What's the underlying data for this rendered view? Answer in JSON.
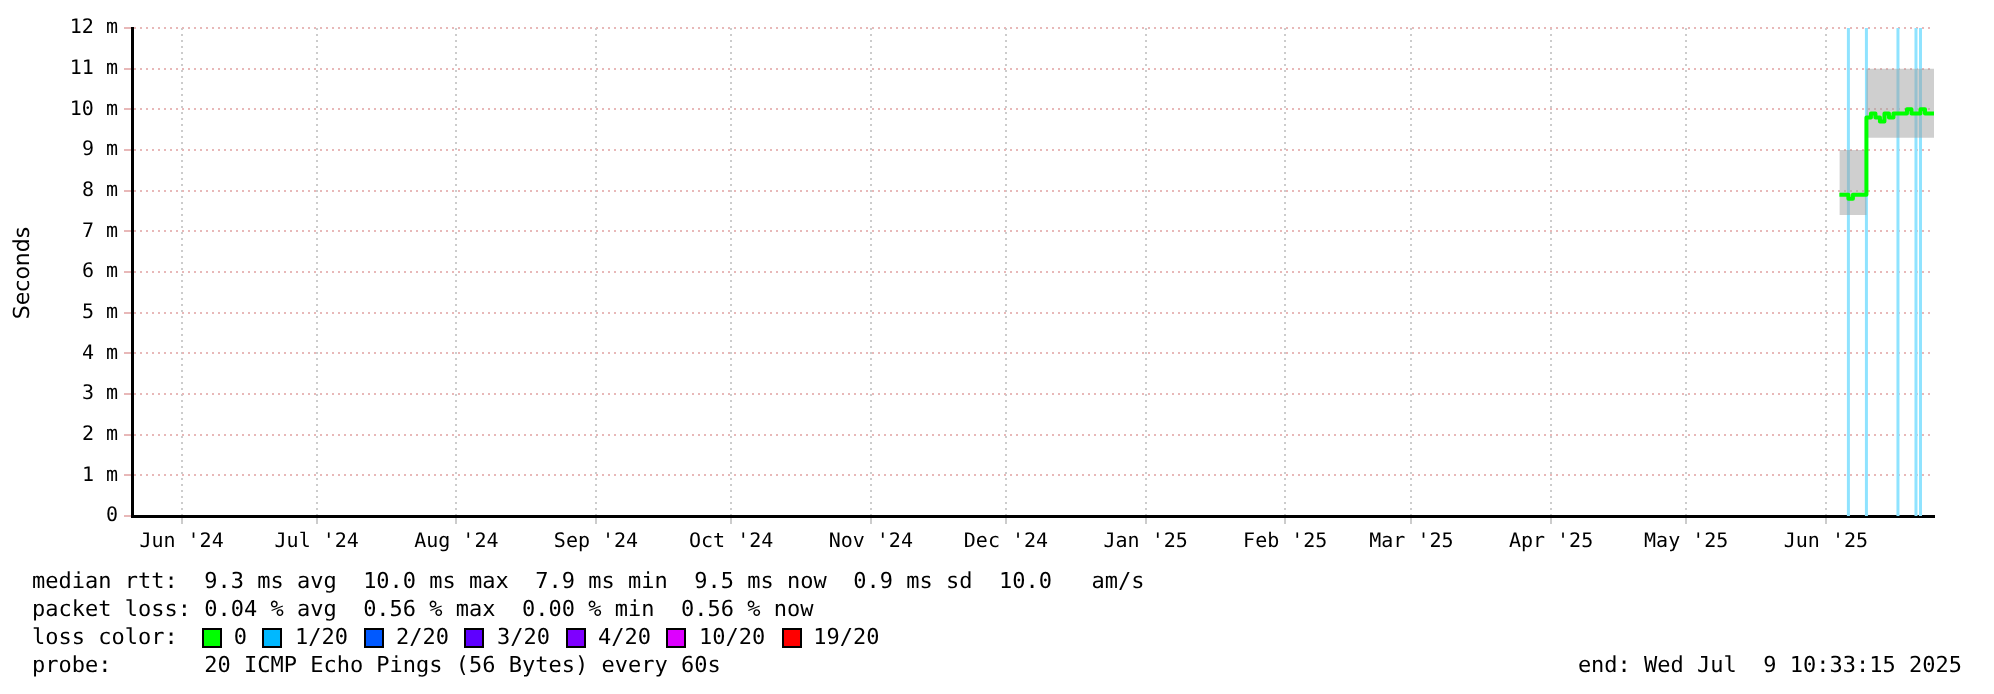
{
  "chart_data": {
    "type": "step",
    "ylabel": "Seconds",
    "legend_title": "loss color:",
    "legend": "bottom",
    "grid": true,
    "x": [
      "2025-06-18",
      "2025-06-19",
      "2025-06-20",
      "2025-06-21",
      "2025-06-22",
      "2025-06-23",
      "2025-06-24",
      "2025-06-25",
      "2025-06-26",
      "2025-06-27",
      "2025-06-28",
      "2025-06-29",
      "2025-06-30",
      "2025-07-01",
      "2025-07-02",
      "2025-07-03",
      "2025-07-04",
      "2025-07-05",
      "2025-07-06",
      "2025-07-07",
      "2025-07-08",
      "2025-07-09"
    ],
    "xlim": [
      "2024-06-04",
      "2025-07-09"
    ],
    "xticks": [
      {
        "value": "2024-06-15",
        "label": "Jun '24"
      },
      {
        "value": "2024-07-15",
        "label": "Jul '24"
      },
      {
        "value": "2024-08-15",
        "label": "Aug '24"
      },
      {
        "value": "2024-09-15",
        "label": "Sep '24"
      },
      {
        "value": "2024-10-15",
        "label": "Oct '24"
      },
      {
        "value": "2024-11-15",
        "label": "Nov '24"
      },
      {
        "value": "2024-12-15",
        "label": "Dec '24"
      },
      {
        "value": "2025-01-15",
        "label": "Jan '25"
      },
      {
        "value": "2025-02-15",
        "label": "Feb '25"
      },
      {
        "value": "2025-03-15",
        "label": "Mar '25"
      },
      {
        "value": "2025-04-15",
        "label": "Apr '25"
      },
      {
        "value": "2025-05-15",
        "label": "May '25"
      },
      {
        "value": "2025-06-15",
        "label": "Jun '25"
      }
    ],
    "ylim": [
      0,
      12
    ],
    "yticks": [
      0,
      {
        "value": 1,
        "label": "1 m"
      },
      {
        "value": 2,
        "label": "2 m"
      },
      {
        "value": 3,
        "label": "3 m"
      },
      {
        "value": 4,
        "label": "4 m"
      },
      {
        "value": 5,
        "label": "5 m"
      },
      {
        "value": 6,
        "label": "6 m"
      },
      {
        "value": 7,
        "label": "7 m"
      },
      {
        "value": 8,
        "label": "8 m"
      },
      {
        "value": 9,
        "label": "9 m"
      },
      {
        "value": 10,
        "label": "10 m"
      },
      {
        "value": 11,
        "label": "11 m"
      },
      {
        "value": 12,
        "label": "12 m"
      }
    ],
    "series": [
      {
        "name": "0",
        "color": "#00ff00",
        "values": [
          7.9,
          7.9,
          7.8,
          7.9,
          7.9,
          7.9,
          9.8,
          9.9,
          9.8,
          9.7,
          9.9,
          9.8,
          9.9,
          9.9,
          9.9,
          10.0,
          9.9,
          9.9,
          10.0,
          9.9,
          9.9,
          9.9
        ],
        "lower": [
          7.4,
          7.4,
          7.4,
          7.4,
          7.4,
          7.4,
          9.3,
          9.3,
          9.3,
          9.3,
          9.3,
          9.3,
          9.3,
          9.3,
          9.3,
          9.3,
          9.3,
          9.3,
          9.3,
          9.3,
          9.3,
          9.3
        ],
        "upper": [
          9.0,
          9.0,
          9.0,
          9.0,
          9.0,
          9.0,
          11.0,
          11.0,
          11.0,
          11.0,
          11.0,
          11.0,
          11.0,
          11.0,
          11.0,
          11.0,
          11.0,
          11.0,
          11.0,
          11.0,
          11.0,
          11.0
        ]
      },
      {
        "name": "1/20",
        "color": "#00b8ff",
        "values": [
          null,
          null,
          null,
          null,
          null,
          null,
          null,
          null,
          null,
          null,
          null,
          null,
          null,
          null,
          null,
          null,
          null,
          null,
          null,
          null,
          null,
          null
        ]
      },
      {
        "name": "2/20",
        "color": "#0059ff",
        "values": [
          null,
          null,
          null,
          null,
          null,
          null,
          null,
          null,
          null,
          null,
          null,
          null,
          null,
          null,
          null,
          null,
          null,
          null,
          null,
          null,
          null,
          null
        ]
      },
      {
        "name": "3/20",
        "color": "#5e00ff",
        "values": [
          null,
          null,
          null,
          null,
          null,
          null,
          null,
          null,
          null,
          null,
          null,
          null,
          null,
          null,
          null,
          null,
          null,
          null,
          null,
          null,
          null,
          null
        ]
      },
      {
        "name": "4/20",
        "color": "#7e00ff",
        "values": [
          null,
          null,
          null,
          null,
          null,
          null,
          null,
          null,
          null,
          null,
          null,
          null,
          null,
          null,
          null,
          null,
          null,
          null,
          null,
          null,
          null,
          null
        ]
      },
      {
        "name": "10/20",
        "color": "#dd00ff",
        "values": [
          null,
          null,
          null,
          null,
          null,
          null,
          null,
          null,
          null,
          null,
          null,
          null,
          null,
          null,
          null,
          null,
          null,
          null,
          null,
          null,
          null,
          null
        ]
      },
      {
        "name": "19/20",
        "color": "#ff0000",
        "values": [
          null,
          null,
          null,
          null,
          null,
          null,
          null,
          null,
          null,
          null,
          null,
          null,
          null,
          null,
          null,
          null,
          null,
          null,
          null,
          null,
          null,
          null
        ]
      }
    ],
    "ref_lines": [
      {
        "axis": "x",
        "value": "2025-06-20",
        "color": "#8fe3ff"
      },
      {
        "axis": "x",
        "value": "2025-06-24",
        "color": "#8fe3ff"
      },
      {
        "axis": "x",
        "value": "2025-07-01",
        "color": "#8fe3ff"
      },
      {
        "axis": "x",
        "value": "2025-07-05",
        "color": "#8fe3ff"
      },
      {
        "axis": "x",
        "value": "2025-07-06",
        "color": "#8fe3ff"
      }
    ],
    "annotations": [
      "median rtt:  9.3 ms avg  10.0 ms max  7.9 ms min  9.5 ms now  0.9 ms sd  10.0   am/s",
      "packet loss: 0.04 % avg  0.56 % max  0.00 % min  0.56 % now",
      "probe:       20 ICMP Echo Pings (56 Bytes) every 60s",
      "end: Wed Jul  9 10:33:15 2025"
    ]
  }
}
